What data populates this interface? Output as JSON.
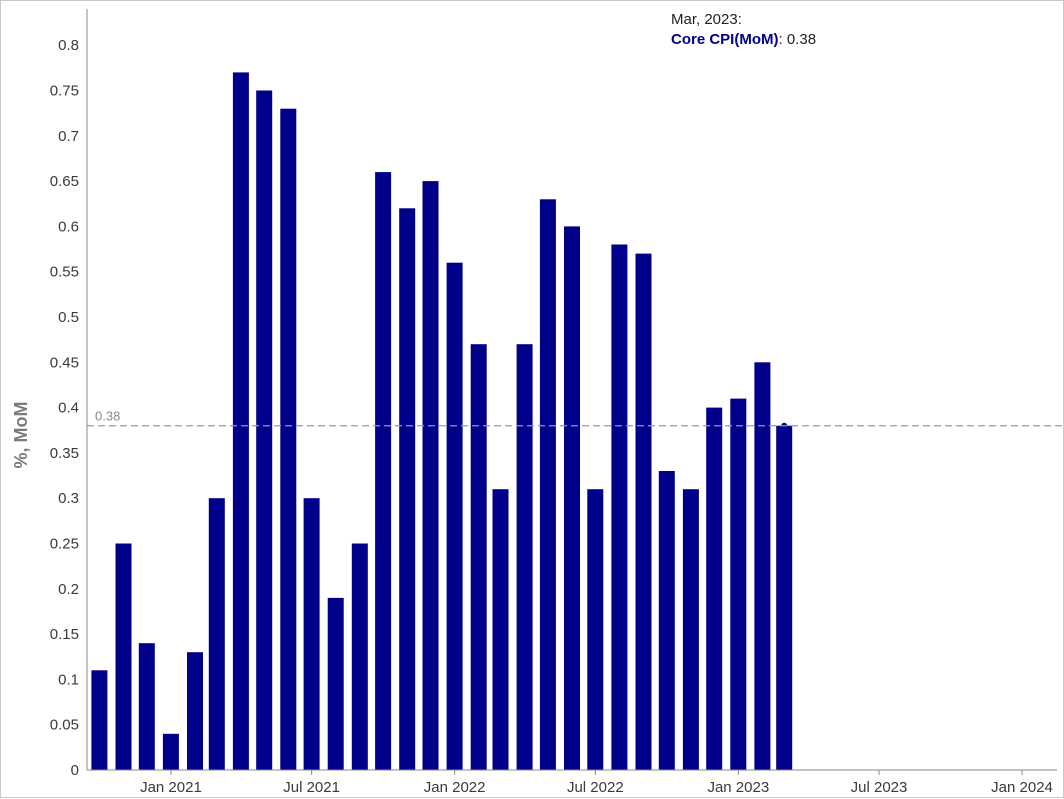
{
  "chart_data": {
    "type": "bar",
    "ylabel": "%, MoM",
    "ylim": [
      0,
      0.84
    ],
    "yticks": [
      0,
      0.05,
      0.1,
      0.15,
      0.2,
      0.25,
      0.3,
      0.35,
      0.4,
      0.45,
      0.5,
      0.55,
      0.6,
      0.65,
      0.7,
      0.75,
      0.8
    ],
    "xlim": [
      "2020-09-15",
      "2024-02-15"
    ],
    "xticks": [
      {
        "date": "2021-01-01",
        "label": "Jan 2021"
      },
      {
        "date": "2021-07-01",
        "label": "Jul 2021"
      },
      {
        "date": "2022-01-01",
        "label": "Jan 2022"
      },
      {
        "date": "2022-07-01",
        "label": "Jul 2022"
      },
      {
        "date": "2023-01-01",
        "label": "Jan 2023"
      },
      {
        "date": "2023-07-01",
        "label": "Jul 2023"
      },
      {
        "date": "2024-01-01",
        "label": "Jan 2024"
      }
    ],
    "grid": false,
    "bar_color": "#00008b",
    "series": [
      {
        "name": "Core CPI(MoM)",
        "points": [
          {
            "date": "2020-10-01",
            "value": 0.11
          },
          {
            "date": "2020-11-01",
            "value": 0.25
          },
          {
            "date": "2020-12-01",
            "value": 0.14
          },
          {
            "date": "2021-01-01",
            "value": 0.04
          },
          {
            "date": "2021-02-01",
            "value": 0.13
          },
          {
            "date": "2021-03-01",
            "value": 0.3
          },
          {
            "date": "2021-04-01",
            "value": 0.77
          },
          {
            "date": "2021-05-01",
            "value": 0.75
          },
          {
            "date": "2021-06-01",
            "value": 0.73
          },
          {
            "date": "2021-07-01",
            "value": 0.3
          },
          {
            "date": "2021-08-01",
            "value": 0.19
          },
          {
            "date": "2021-09-01",
            "value": 0.25
          },
          {
            "date": "2021-10-01",
            "value": 0.66
          },
          {
            "date": "2021-11-01",
            "value": 0.62
          },
          {
            "date": "2021-12-01",
            "value": 0.65
          },
          {
            "date": "2022-01-01",
            "value": 0.56
          },
          {
            "date": "2022-02-01",
            "value": 0.47
          },
          {
            "date": "2022-03-01",
            "value": 0.31
          },
          {
            "date": "2022-04-01",
            "value": 0.47
          },
          {
            "date": "2022-05-01",
            "value": 0.63
          },
          {
            "date": "2022-06-01",
            "value": 0.6
          },
          {
            "date": "2022-07-01",
            "value": 0.31
          },
          {
            "date": "2022-08-01",
            "value": 0.58
          },
          {
            "date": "2022-09-01",
            "value": 0.57
          },
          {
            "date": "2022-10-01",
            "value": 0.33
          },
          {
            "date": "2022-11-01",
            "value": 0.31
          },
          {
            "date": "2022-12-01",
            "value": 0.4
          },
          {
            "date": "2023-01-01",
            "value": 0.41
          },
          {
            "date": "2023-02-01",
            "value": 0.45
          },
          {
            "date": "2023-03-01",
            "value": 0.38
          }
        ]
      }
    ],
    "reference_line": {
      "value": 0.38,
      "label": "0.38",
      "color": "#999999"
    },
    "tooltip": {
      "date": "Mar, 2023:",
      "series": "Core CPI(MoM)",
      "value": "0.38"
    }
  }
}
